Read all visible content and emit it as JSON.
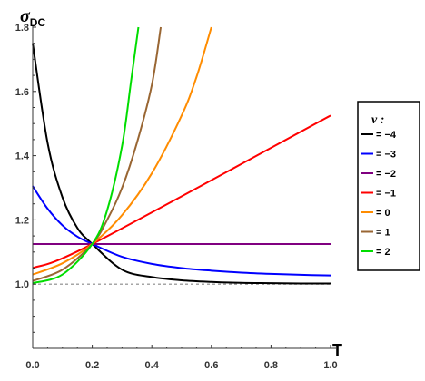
{
  "chart_data": {
    "type": "line",
    "xlabel": "T",
    "ylabel": "σ",
    "ylabel_sub": "DC",
    "xlim": [
      0,
      1
    ],
    "ylim": [
      0.8,
      1.8
    ],
    "xticks": [
      "0.0",
      "0.2",
      "0.4",
      "0.6",
      "0.8",
      "1.0"
    ],
    "yticks": [
      "1.0",
      "1.2",
      "1.4",
      "1.6",
      "1.8"
    ],
    "reference_line": {
      "y": 1.0,
      "style": "dashed"
    },
    "legend": {
      "title": "v :",
      "placement": "right"
    },
    "series": [
      {
        "name": "−4",
        "color": "#000000",
        "x": [
          0,
          0.05,
          0.1,
          0.15,
          0.2,
          0.3,
          0.4,
          0.5,
          0.6,
          0.7,
          0.8,
          0.9,
          1.0
        ],
        "y": [
          1.75,
          1.44,
          1.27,
          1.175,
          1.125,
          1.045,
          1.022,
          1.012,
          1.007,
          1.004,
          1.003,
          1.002,
          1.002
        ]
      },
      {
        "name": "−3",
        "color": "#0000ff",
        "x": [
          0,
          0.05,
          0.1,
          0.15,
          0.2,
          0.3,
          0.4,
          0.5,
          0.6,
          0.7,
          0.8,
          0.9,
          1.0
        ],
        "y": [
          1.305,
          1.235,
          1.183,
          1.148,
          1.125,
          1.085,
          1.063,
          1.05,
          1.042,
          1.036,
          1.032,
          1.029,
          1.027
        ]
      },
      {
        "name": "−2",
        "color": "#800080",
        "x": [
          0,
          1.0
        ],
        "y": [
          1.125,
          1.125
        ]
      },
      {
        "name": "−1",
        "color": "#ff0000",
        "x": [
          0,
          0.2,
          1.0
        ],
        "y": [
          1.05,
          1.125,
          1.525
        ]
      },
      {
        "name": "0",
        "color": "#ff8c00",
        "x": [
          0,
          0.1,
          0.2,
          0.3,
          0.4,
          0.5,
          0.55,
          0.6
        ],
        "y": [
          1.03,
          1.065,
          1.125,
          1.215,
          1.345,
          1.525,
          1.645,
          1.8
        ]
      },
      {
        "name": "1",
        "color": "#996633",
        "x": [
          0,
          0.1,
          0.2,
          0.25,
          0.3,
          0.35,
          0.4,
          0.43
        ],
        "y": [
          1.01,
          1.045,
          1.125,
          1.2,
          1.3,
          1.44,
          1.62,
          1.8
        ]
      },
      {
        "name": "2",
        "color": "#00dd00",
        "x": [
          0,
          0.1,
          0.2,
          0.25,
          0.3,
          0.33,
          0.355
        ],
        "y": [
          1.003,
          1.03,
          1.125,
          1.23,
          1.43,
          1.63,
          1.8
        ]
      }
    ]
  }
}
